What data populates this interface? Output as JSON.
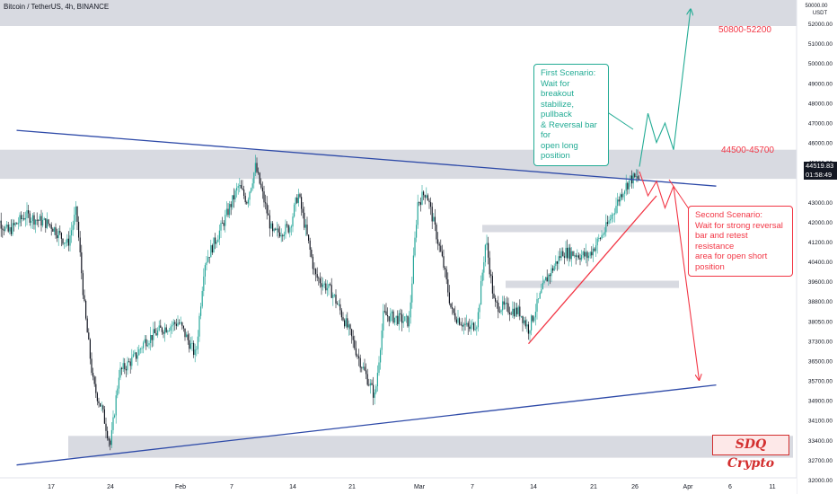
{
  "header": {
    "symbol_line": "Bitcoin / TetherUS, 4h, BINANCE"
  },
  "price_axis": {
    "unit_labels": [
      "50000.00",
      "USDT"
    ],
    "labels": [
      "52000.00",
      "51000.00",
      "50000.00",
      "49000.00",
      "48000.00",
      "47000.00",
      "46000.00",
      "45000.00",
      "44519.83",
      "43000.00",
      "42000.00",
      "41200.00",
      "40400.00",
      "39600.00",
      "38800.00",
      "38050.00",
      "37300.00",
      "36500.00",
      "35700.00",
      "34900.00",
      "34100.00",
      "33400.00",
      "32700.00",
      "32000.00"
    ],
    "current_price": "44519.83",
    "countdown": "01:58:49"
  },
  "time_axis": {
    "labels": [
      "17",
      "24",
      "Feb",
      "7",
      "14",
      "21",
      "Mar",
      "7",
      "14",
      "21",
      "26",
      "Apr",
      "6",
      "11"
    ]
  },
  "annotations": {
    "first_scenario": [
      "First Scenario:",
      "Wait for breakout",
      "stabilize, pullback",
      "& Reversal bar for",
      "open long position"
    ],
    "second_scenario": [
      "Second Scenario:",
      "Wait for strong reversal",
      "bar and retest resistance",
      "area for open short position"
    ],
    "zone_upper_label": "50800-52200",
    "zone_mid_label": "44500-45700",
    "brand": "SDQ Crypto"
  },
  "colors": {
    "up": "#26a69a",
    "down": "#131722",
    "trendline": "#2e4aa8",
    "green_path": "#22ab94",
    "red_path": "#f23645",
    "zone": "#d1d4dc"
  },
  "chart_data": {
    "type": "candlestick",
    "symbol": "Bitcoin / TetherUS",
    "interval": "4h",
    "exchange": "BINANCE",
    "price_range": [
      32000,
      52000
    ],
    "zones": [
      {
        "label": "50800-52200",
        "low": 50800,
        "high": 52200
      },
      {
        "label": "44500-45700",
        "low": 44500,
        "high": 45700
      },
      {
        "label": "",
        "low": 42300,
        "high": 42600
      },
      {
        "label": "",
        "low": 40000,
        "high": 40300
      },
      {
        "label": "",
        "low": 33000,
        "high": 33900
      }
    ],
    "price_path": [
      [
        "Jan 10",
        43200
      ],
      [
        "Jan 12",
        42300
      ],
      [
        "Jan 14",
        43000
      ],
      [
        "Jan 17",
        42600
      ],
      [
        "Jan 19",
        41800
      ],
      [
        "Jan 20",
        43200
      ],
      [
        "Jan 21",
        39000
      ],
      [
        "Jan 22",
        36000
      ],
      [
        "Jan 23",
        35000
      ],
      [
        "Jan 24",
        33500
      ],
      [
        "Jan 25",
        36500
      ],
      [
        "Jan 27",
        37200
      ],
      [
        "Jan 28",
        37800
      ],
      [
        "Jan 30",
        38300
      ],
      [
        "Feb 1",
        38600
      ],
      [
        "Feb 3",
        37200
      ],
      [
        "Feb 4",
        41000
      ],
      [
        "Feb 6",
        42500
      ],
      [
        "Feb 8",
        44200
      ],
      [
        "Feb 9",
        43600
      ],
      [
        "Feb 10",
        45000
      ],
      [
        "Feb 12",
        42200
      ],
      [
        "Feb 14",
        42500
      ],
      [
        "Feb 15",
        43900
      ],
      [
        "Feb 17",
        40500
      ],
      [
        "Feb 19",
        39800
      ],
      [
        "Feb 21",
        38200
      ],
      [
        "Feb 22",
        37200
      ],
      [
        "Feb 24",
        35500
      ],
      [
        "Feb 25",
        38900
      ],
      [
        "Feb 28",
        38600
      ],
      [
        "Mar 1",
        43500
      ],
      [
        "Mar 2",
        44000
      ],
      [
        "Mar 4",
        41000
      ],
      [
        "Mar 5",
        39000
      ],
      [
        "Mar 7",
        38300
      ],
      [
        "Mar 8",
        38600
      ],
      [
        "Mar 9",
        42000
      ],
      [
        "Mar 10",
        39300
      ],
      [
        "Mar 13",
        39000
      ],
      [
        "Mar 14",
        38300
      ],
      [
        "Mar 16",
        40300
      ],
      [
        "Mar 18",
        41500
      ],
      [
        "Mar 21",
        41300
      ],
      [
        "Mar 23",
        42400
      ],
      [
        "Mar 25",
        44000
      ],
      [
        "Mar 26",
        44500
      ],
      [
        "Mar 27",
        44519.83
      ]
    ],
    "trendlines": [
      {
        "name": "descending resistance",
        "points": [
          [
            "Jan 13",
            46500
          ],
          [
            "Apr 5",
            44200
          ]
        ]
      },
      {
        "name": "ascending support",
        "points": [
          [
            "Jan 13",
            32700
          ],
          [
            "Apr 5",
            36000
          ]
        ]
      },
      {
        "name": "short-term support",
        "points": [
          [
            "Mar 14",
            37700
          ],
          [
            "Mar 29",
            43800
          ]
        ]
      }
    ],
    "scenarios": [
      {
        "name": "First Scenario",
        "path": [
          [
            "Mar 27",
            45000
          ],
          [
            "Mar 28",
            47200
          ],
          [
            "Mar 29",
            46000
          ],
          [
            "Mar 30",
            46800
          ],
          [
            "Mar 31",
            45700
          ],
          [
            "Apr 2",
            51500
          ]
        ]
      },
      {
        "name": "Second Scenario",
        "path": [
          [
            "Mar 27",
            44800
          ],
          [
            "Mar 28",
            43800
          ],
          [
            "Mar 29",
            44400
          ],
          [
            "Mar 30",
            43300
          ],
          [
            "Mar 31",
            44200
          ],
          [
            "Apr 3",
            36200
          ]
        ]
      }
    ]
  }
}
